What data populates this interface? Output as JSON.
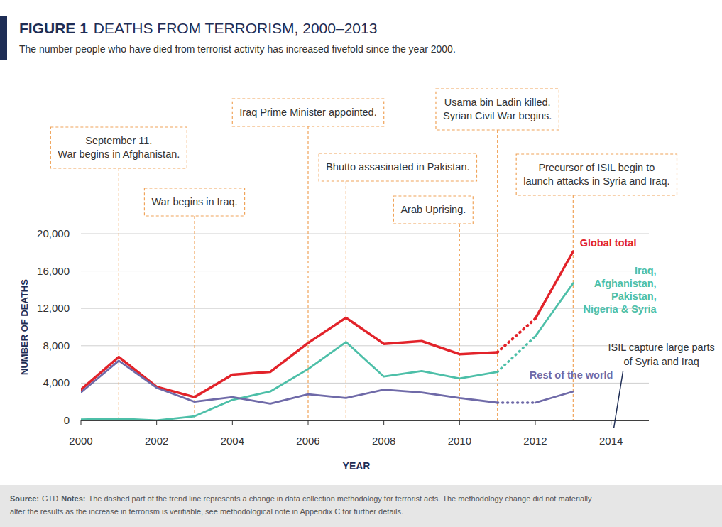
{
  "chart_data": {
    "type": "line",
    "figure_label": "FIGURE 1",
    "title": "DEATHS FROM TERRORISM, 2000–2013",
    "subtitle": "The number people who have died from terrorist activity has increased fivefold since the year 2000.",
    "x_label": "YEAR",
    "y_label": "NUMBER OF DEATHS",
    "x": [
      2000,
      2001,
      2002,
      2003,
      2004,
      2005,
      2006,
      2007,
      2008,
      2009,
      2010,
      2011,
      2012,
      2013
    ],
    "xlim": [
      2000,
      2015
    ],
    "xticks": [
      2000,
      2002,
      2004,
      2006,
      2008,
      2010,
      2012,
      2014
    ],
    "ylim": [
      0,
      20000
    ],
    "yticks": [
      0,
      {
        "value": 4000,
        "label": "4,000"
      },
      {
        "value": 8000,
        "label": "8,000"
      },
      {
        "value": 12000,
        "label": "12,000"
      },
      {
        "value": 16000,
        "label": "16,000"
      },
      {
        "value": 20000,
        "label": "20,000"
      }
    ],
    "grid": true,
    "series": [
      {
        "name": "Global total",
        "color": "#e2232a",
        "line_style": "solid",
        "values": [
          3300,
          6800,
          3600,
          2500,
          4900,
          5200,
          8300,
          11000,
          8200,
          8500,
          7100,
          7300,
          null,
          null
        ]
      },
      {
        "name": "Iraq,\nAfghanistan,\nPakistan,\nNigeria & Syria",
        "color": "#4dbfa8",
        "line_style": "solid",
        "values": [
          100,
          200,
          0,
          450,
          2200,
          3100,
          5500,
          8400,
          4700,
          5300,
          4500,
          5200,
          null,
          null
        ]
      },
      {
        "name": "Rest of the world",
        "color": "#6f6aa8",
        "line_style": "solid",
        "values": [
          3000,
          6400,
          3500,
          2000,
          2500,
          1800,
          2800,
          2400,
          3300,
          3000,
          2400,
          1900,
          null,
          null
        ]
      },
      {
        "color": "#e2232a",
        "line_style": "dotted",
        "values": [
          null,
          null,
          null,
          null,
          null,
          null,
          null,
          null,
          null,
          null,
          null,
          7300,
          10900,
          null
        ]
      },
      {
        "color": "#4dbfa8",
        "line_style": "dotted",
        "values": [
          null,
          null,
          null,
          null,
          null,
          null,
          null,
          null,
          null,
          null,
          null,
          5200,
          9000,
          null
        ]
      },
      {
        "color": "#6f6aa8",
        "line_style": "dotted",
        "values": [
          null,
          null,
          null,
          null,
          null,
          null,
          null,
          null,
          null,
          null,
          null,
          1900,
          1900,
          null
        ]
      },
      {
        "color": "#e2232a",
        "line_style": "solid",
        "values": [
          null,
          null,
          null,
          null,
          null,
          null,
          null,
          null,
          null,
          null,
          null,
          null,
          10900,
          18100
        ]
      },
      {
        "color": "#4dbfa8",
        "line_style": "solid",
        "values": [
          null,
          null,
          null,
          null,
          null,
          null,
          null,
          null,
          null,
          null,
          null,
          null,
          9000,
          14700
        ]
      },
      {
        "color": "#6f6aa8",
        "line_style": "solid",
        "values": [
          null,
          null,
          null,
          null,
          null,
          null,
          null,
          null,
          null,
          null,
          null,
          null,
          1900,
          3100
        ]
      }
    ],
    "annotations": [
      {
        "x": 2001,
        "text": [
          "September 11.",
          "War begins in Afghanistan."
        ]
      },
      {
        "x": 2003,
        "text": [
          "War begins in Iraq."
        ]
      },
      {
        "x": 2006,
        "text": [
          "Iraq Prime Minister appointed."
        ]
      },
      {
        "x": 2007,
        "text": [
          "Bhutto assasinated in Pakistan."
        ]
      },
      {
        "x": 2010,
        "text": [
          "Arab Uprising."
        ]
      },
      {
        "x": 2011,
        "text": [
          "Usama bin Ladin killed.",
          "Syrian Civil War begins."
        ]
      },
      {
        "x": 2013,
        "text": [
          "Precursor of ISIL begin to",
          "launch attacks in Syria and Iraq."
        ]
      },
      {
        "x": 2014,
        "text": [
          "ISIL capture large parts",
          "of Syria and Iraq"
        ]
      }
    ],
    "source_label": "Source:",
    "source": "GTD",
    "notes_label": "Notes:",
    "notes": [
      "The dashed part of the trend line represents a change in data collection methodology for terrorist acts. The methodology change did not materially",
      "alter the results as the increase in terrorism is verifiable, see methodological note in Appendix C for further details."
    ]
  }
}
